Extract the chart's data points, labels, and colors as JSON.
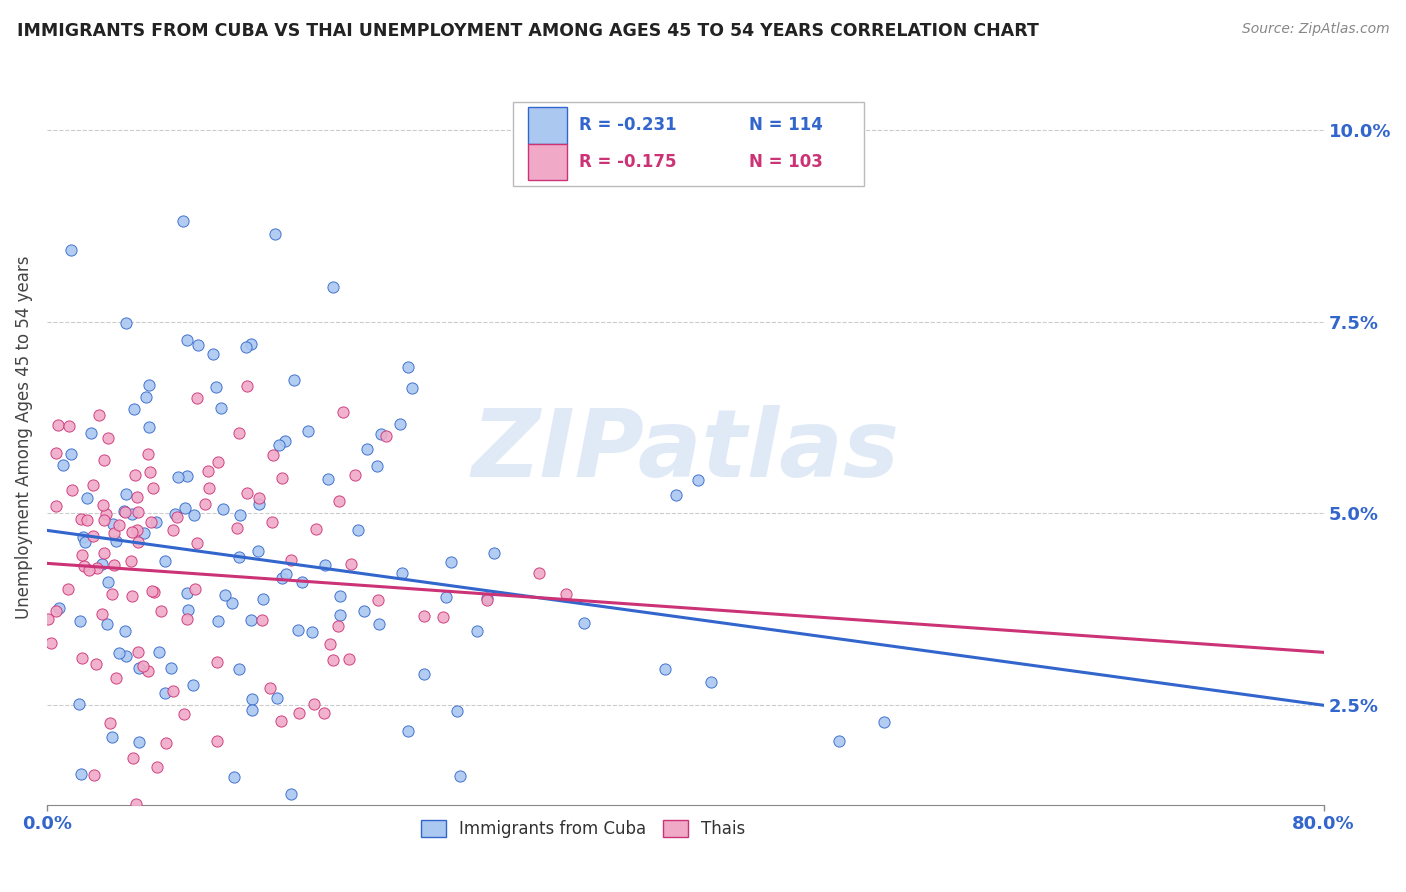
{
  "title": "IMMIGRANTS FROM CUBA VS THAI UNEMPLOYMENT AMONG AGES 45 TO 54 YEARS CORRELATION CHART",
  "source": "Source: ZipAtlas.com",
  "ylabel": "Unemployment Among Ages 45 to 54 years",
  "yticks": [
    "2.5%",
    "5.0%",
    "7.5%",
    "10.0%"
  ],
  "ytick_vals": [
    0.025,
    0.05,
    0.075,
    0.1
  ],
  "xlim": [
    0.0,
    0.8
  ],
  "ylim": [
    0.012,
    0.108
  ],
  "legend_r1": "R = -0.231",
  "legend_n1": "N = 114",
  "legend_r2": "R = -0.175",
  "legend_n2": "N = 103",
  "color_cuba": "#aac8f0",
  "color_thai": "#f0aac8",
  "line_color_cuba": "#3366cc",
  "line_color_thai": "#cc3377",
  "seed": 42,
  "n_cuba": 114,
  "n_thai": 103,
  "cuba_intercept": 0.0478,
  "cuba_slope": -0.0285,
  "thai_intercept": 0.0435,
  "thai_slope": -0.0145,
  "watermark_text": "ZIPatlas",
  "watermark_color": "#c8daf0",
  "watermark_alpha": 0.55
}
